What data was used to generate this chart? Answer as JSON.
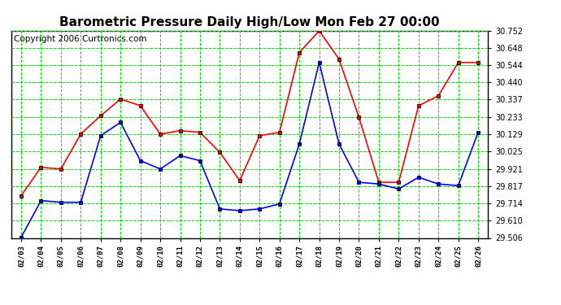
{
  "title": "Barometric Pressure Daily High/Low Mon Feb 27 00:00",
  "copyright": "Copyright 2006 Curtronics.com",
  "dates": [
    "02/03",
    "02/04",
    "02/05",
    "02/06",
    "02/07",
    "02/08",
    "02/09",
    "02/10",
    "02/11",
    "02/12",
    "02/13",
    "02/14",
    "02/15",
    "02/16",
    "02/17",
    "02/18",
    "02/19",
    "02/20",
    "02/21",
    "02/22",
    "02/23",
    "02/24",
    "02/25",
    "02/26"
  ],
  "high": [
    29.76,
    29.93,
    29.92,
    30.13,
    30.24,
    30.34,
    30.3,
    30.13,
    30.15,
    30.14,
    30.02,
    29.85,
    30.12,
    30.14,
    30.62,
    30.75,
    30.58,
    30.23,
    29.84,
    29.84,
    30.3,
    30.36,
    30.56,
    30.56
  ],
  "low": [
    29.51,
    29.73,
    29.72,
    29.72,
    30.12,
    30.2,
    29.97,
    29.92,
    30.0,
    29.97,
    29.68,
    29.67,
    29.68,
    29.71,
    30.07,
    30.56,
    30.07,
    29.84,
    29.83,
    29.8,
    29.87,
    29.83,
    29.82,
    30.14
  ],
  "ylim": [
    29.506,
    30.752
  ],
  "yticks": [
    29.506,
    29.61,
    29.714,
    29.817,
    29.921,
    30.025,
    30.129,
    30.233,
    30.337,
    30.44,
    30.544,
    30.648,
    30.752
  ],
  "high_color": "#ff0000",
  "low_color": "#0000ff",
  "bg_color": "#ffffff",
  "plot_bg_color": "#ffffff",
  "grid_color": "#00dd00",
  "title_fontsize": 11,
  "copyright_fontsize": 7.5
}
